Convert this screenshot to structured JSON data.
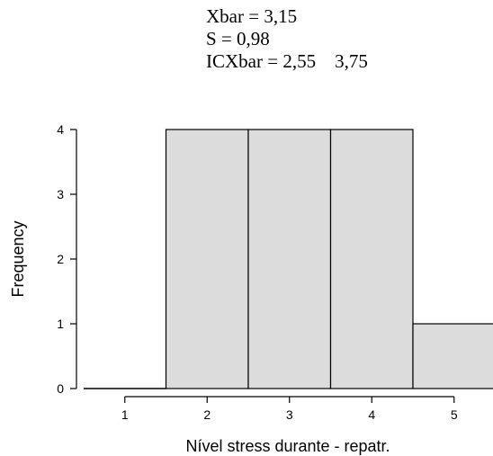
{
  "annotations": {
    "xbar": "Xbar = 3,15",
    "s": "S = 0,98",
    "ic": "ICXbar = 2,55    3,75"
  },
  "colors": {
    "bar_fill": "#dcdcdc",
    "bar_stroke": "#000000"
  },
  "chart_data": {
    "type": "bar",
    "title": "",
    "xlabel": "Nível stress durante - repatr.",
    "ylabel": "Frequency",
    "categories": [
      "1",
      "2",
      "3",
      "4",
      "5"
    ],
    "values": [
      0,
      4,
      4,
      4,
      1
    ],
    "yticks": [
      "0",
      "1",
      "2",
      "3",
      "4"
    ],
    "ylim": [
      0,
      4
    ],
    "grid": false
  }
}
